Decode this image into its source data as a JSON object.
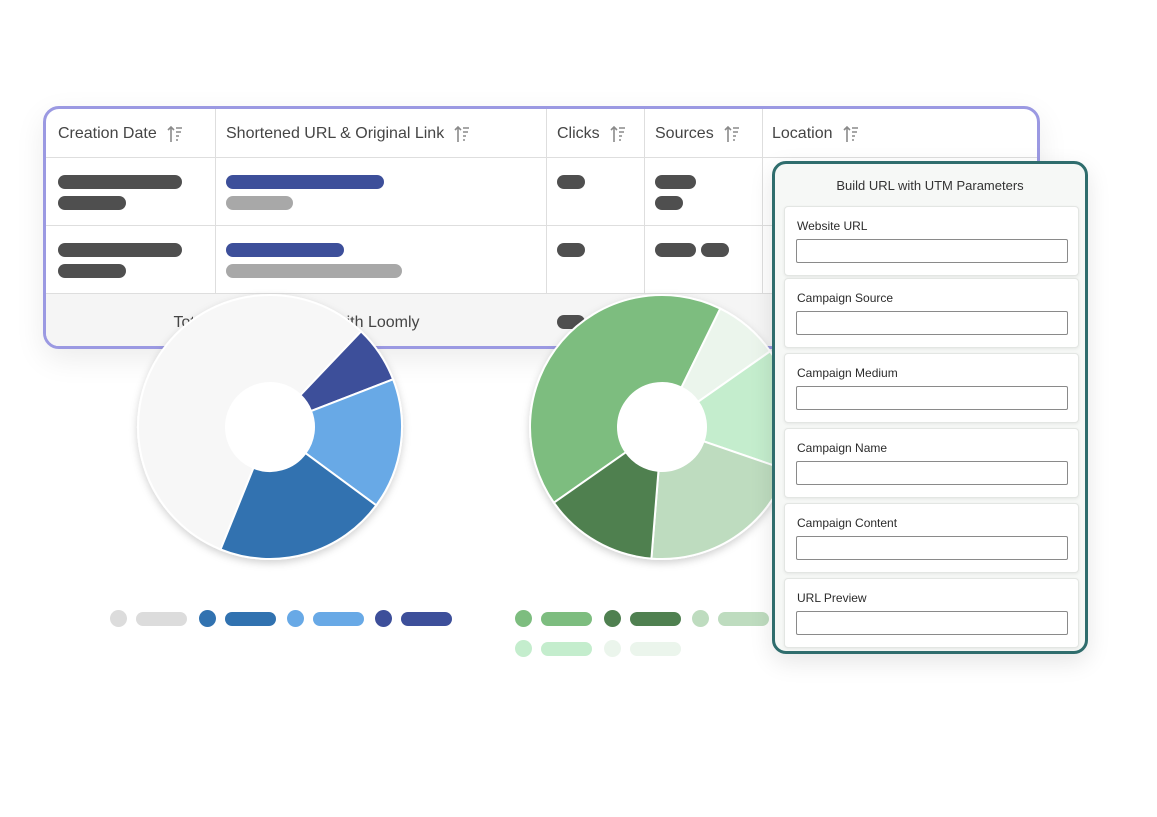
{
  "table": {
    "columns": [
      {
        "label": "Creation Date"
      },
      {
        "label": "Shortened URL & Original Link"
      },
      {
        "label": "Clicks"
      },
      {
        "label": "Sources"
      },
      {
        "label": "Location"
      }
    ],
    "total_label": "Total links created with Loomly",
    "total_label_visible_left": "Tota",
    "total_label_visible_right": "d with Loomly",
    "colors": {
      "border": "#9b99e2",
      "text_bar": "#4f4f4f",
      "link_bar": "#3d4f9a",
      "original_bar": "#a8a8a8"
    }
  },
  "charts": {
    "left_donut": {
      "colors": [
        "#f7f7f7",
        "#3d4f9a",
        "#68a9e6",
        "#3172b0"
      ],
      "shares": [
        0.56,
        0.07,
        0.16,
        0.21
      ]
    },
    "right_donut": {
      "colors": [
        "#7dbd7f",
        "#ebf5ec",
        "#c4edcd",
        "#bedcbf",
        "#4f8050"
      ],
      "shares": [
        0.42,
        0.08,
        0.15,
        0.21,
        0.14
      ]
    }
  },
  "utm": {
    "title": "Build URL with UTM Parameters",
    "fields": [
      {
        "label": "Website URL",
        "value": ""
      },
      {
        "label": "Campaign Source",
        "value": ""
      },
      {
        "label": "Campaign Medium",
        "value": ""
      },
      {
        "label": "Campaign Name",
        "value": ""
      },
      {
        "label": "Campaign Content",
        "value": ""
      },
      {
        "label": "URL Preview",
        "value": ""
      }
    ],
    "colors": {
      "border": "#2f6d6d"
    }
  },
  "icons": {
    "sort": "sort-ascending-icon"
  }
}
